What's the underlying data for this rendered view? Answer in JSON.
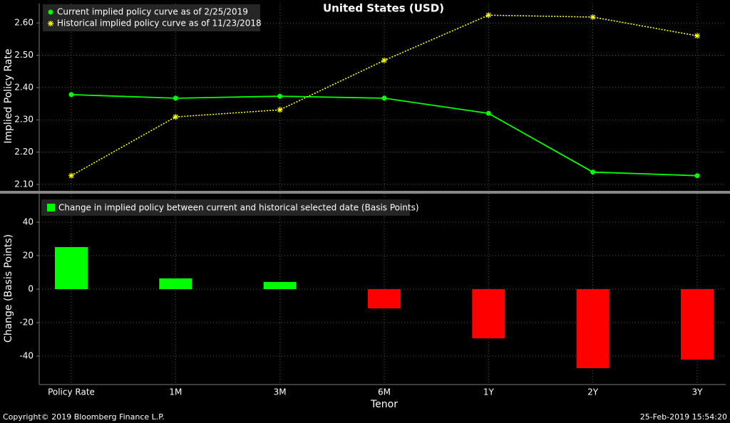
{
  "chart_data": [
    {
      "type": "line",
      "title": "United States (USD)",
      "y_label": "Implied Policy Rate",
      "ylim": [
        2.08,
        2.66
      ],
      "yticks": [
        {
          "value": 2.1,
          "label": "2.10"
        },
        {
          "value": 2.2,
          "label": "2.20"
        },
        {
          "value": 2.3,
          "label": "2.30"
        },
        {
          "value": 2.4,
          "label": "2.40"
        },
        {
          "value": 2.5,
          "label": "2.50"
        },
        {
          "value": 2.6,
          "label": "2.60"
        }
      ],
      "grid": true,
      "legend": "top-left",
      "series": [
        {
          "name": "Current implied policy curve as of 2/25/2019",
          "color": "#00ff00",
          "marker": "dot",
          "values": [
            2.378,
            2.367,
            2.373,
            2.367,
            2.32,
            2.138,
            2.127
          ]
        },
        {
          "name": "Historical implied policy curve as of 11/23/2018",
          "color": "#ffff00",
          "marker": "star",
          "dashed": true,
          "values": [
            2.127,
            2.309,
            2.331,
            2.484,
            2.624,
            2.618,
            2.56
          ]
        }
      ]
    },
    {
      "type": "bar",
      "x_label": "Tenor",
      "y_label": "Change (Basis Points)",
      "categories": [
        "Policy Rate",
        "1M",
        "3M",
        "6M",
        "1Y",
        "2Y",
        "3Y"
      ],
      "ylim": [
        -57,
        57
      ],
      "yticks": [
        -40,
        -20,
        0,
        20,
        40
      ],
      "grid": true,
      "legend": "top-left",
      "positive_color": "#00ff00",
      "negative_color": "#ff0000",
      "series": [
        {
          "name": "Change in implied policy between current and historical selected date (Basis Points)",
          "values": [
            25.1,
            6.4,
            4.3,
            -11.5,
            -29.4,
            -47.2,
            -42.1
          ]
        }
      ]
    }
  ],
  "footer": {
    "copyright": "Copyright© 2019 Bloomberg Finance L.P.",
    "timestamp": "25-Feb-2019 15:54:20"
  }
}
